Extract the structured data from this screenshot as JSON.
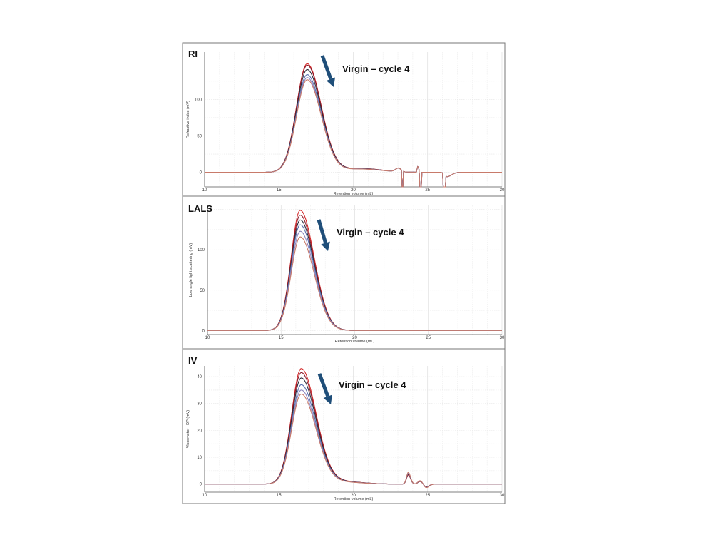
{
  "figure": {
    "arrow_color": "#1f4e79",
    "series_colors": [
      "#d42a2a",
      "#8b1a2a",
      "#2b2b3a",
      "#5a6fb0",
      "#8c86c0",
      "#c87a6a"
    ]
  },
  "chart_data": [
    {
      "type": "line",
      "title": "RI",
      "annotation": "Virgin – cycle 4",
      "xlabel": "Retention volume (mL)",
      "ylabel": "Refractive index (mV)",
      "xlim": [
        10,
        30
      ],
      "ylim": [
        -20,
        165
      ],
      "xticks": [
        10,
        15,
        20,
        25,
        30
      ],
      "yticks": [
        0,
        50,
        100
      ],
      "grid": true,
      "peak_x": 16.9,
      "series": [
        {
          "peak": 149
        },
        {
          "peak": 147
        },
        {
          "peak": 141
        },
        {
          "peak": 134
        },
        {
          "peak": 130
        },
        {
          "peak": 127
        }
      ]
    },
    {
      "type": "line",
      "title": "LALS",
      "annotation": "Virgin – cycle 4",
      "xlabel": "Retention volume (mL)",
      "ylabel": "Low angle light scattering (mV)",
      "xlim": [
        10,
        30
      ],
      "ylim": [
        -5,
        155
      ],
      "xticks": [
        10,
        15,
        20,
        25,
        30
      ],
      "yticks": [
        0,
        50,
        100
      ],
      "grid": true,
      "peak_x": 16.3,
      "series": [
        {
          "peak": 149
        },
        {
          "peak": 143
        },
        {
          "peak": 137
        },
        {
          "peak": 131
        },
        {
          "peak": 123
        },
        {
          "peak": 116
        }
      ]
    },
    {
      "type": "line",
      "title": "IV",
      "annotation": "Virgin – cycle 4",
      "xlabel": "Retention volume (mL)",
      "ylabel": "Viscometer - DP (mV)",
      "xlim": [
        10,
        30
      ],
      "ylim": [
        -3,
        44
      ],
      "xticks": [
        10,
        15,
        20,
        25,
        30
      ],
      "yticks": [
        0,
        10,
        20,
        30,
        40
      ],
      "grid": true,
      "peak_x": 16.5,
      "series": [
        {
          "peak": 43
        },
        {
          "peak": 41.5
        },
        {
          "peak": 39.5
        },
        {
          "peak": 37
        },
        {
          "peak": 35
        },
        {
          "peak": 33.5
        }
      ]
    }
  ]
}
